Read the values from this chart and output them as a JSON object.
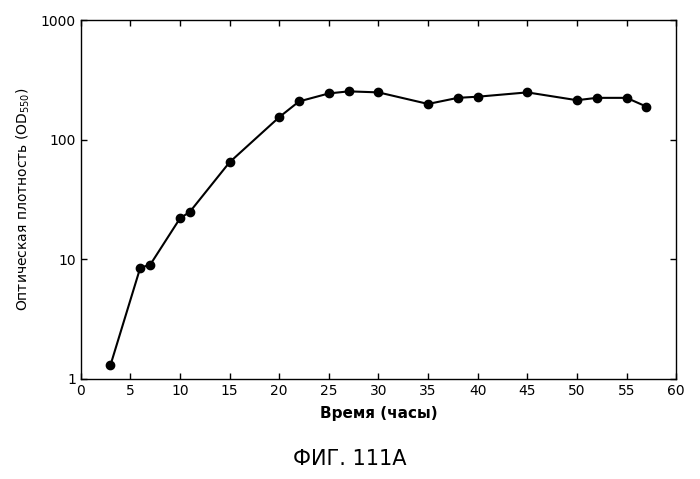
{
  "x": [
    3,
    6,
    7,
    10,
    11,
    15,
    20,
    22,
    25,
    27,
    30,
    35,
    38,
    40,
    45,
    50,
    52,
    55,
    57
  ],
  "y": [
    1.3,
    8.5,
    9.0,
    22,
    25,
    65,
    155,
    210,
    245,
    255,
    250,
    200,
    225,
    230,
    250,
    215,
    225,
    225,
    190
  ],
  "xlabel": "Время (часы)",
  "ylabel": "Оптическая плотность (OD 550)",
  "title": "ФИГ. 111А",
  "xlim": [
    0,
    60
  ],
  "ylim_log": [
    1,
    1000
  ],
  "xticks": [
    0,
    5,
    10,
    15,
    20,
    25,
    30,
    35,
    40,
    45,
    50,
    55,
    60
  ],
  "yticks": [
    1,
    10,
    100,
    1000
  ],
  "background_color": "#ffffff",
  "line_color": "#000000",
  "marker_color": "#000000",
  "marker_size": 6,
  "line_width": 1.5
}
